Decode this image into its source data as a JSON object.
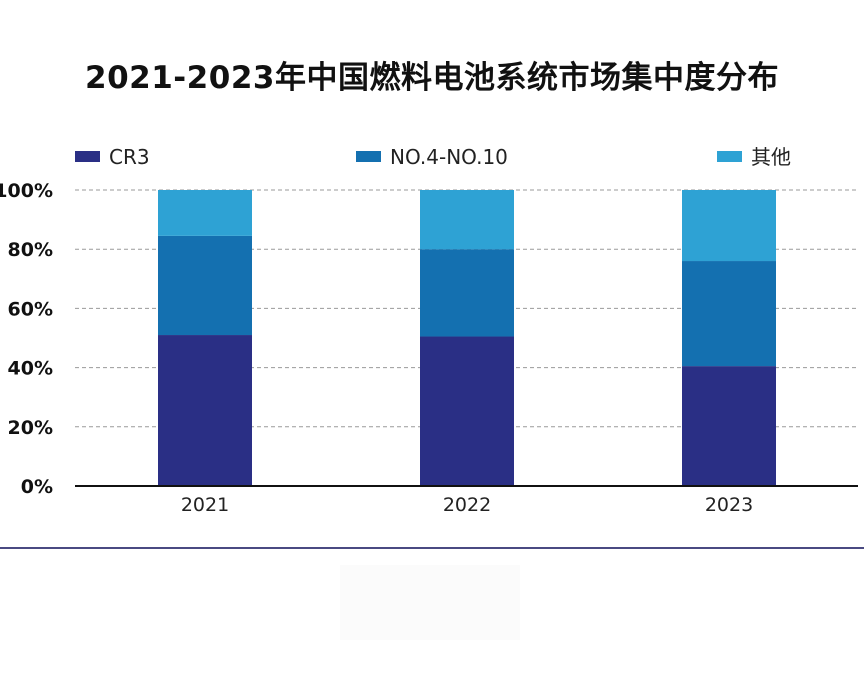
{
  "chart_data": {
    "type": "bar",
    "stacked": true,
    "title": "2021-2023年中国燃料电池系统市场集中度分布",
    "categories": [
      "2021",
      "2022",
      "2023"
    ],
    "series": [
      {
        "name": "CR3",
        "color": "#2a2f85",
        "values": [
          51,
          50.5,
          40.5
        ]
      },
      {
        "name": "NO.4-NO.10",
        "color": "#1470b0",
        "values": [
          33.5,
          29.5,
          35.5
        ]
      },
      {
        "name": "其他",
        "color": "#2ea2d4",
        "values": [
          15.5,
          20,
          24
        ]
      }
    ],
    "yticks": [
      "0%",
      "20%",
      "40%",
      "60%",
      "80%",
      "100%"
    ],
    "ylim": [
      0,
      100
    ],
    "grid": true,
    "legend_position": "top"
  }
}
